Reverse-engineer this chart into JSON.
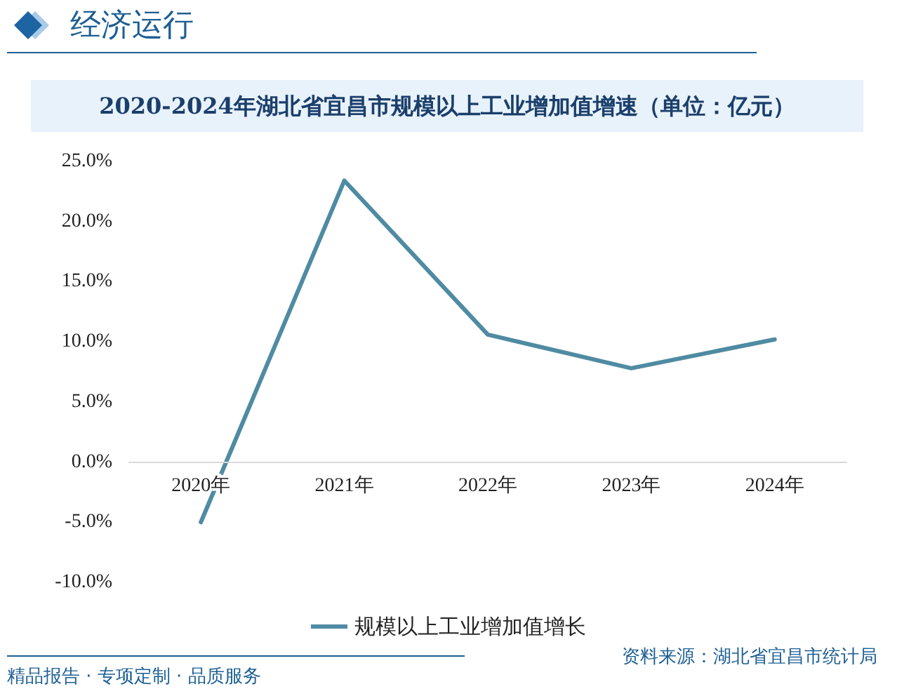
{
  "chart_data": {
    "type": "line",
    "title": "2020-2024年湖北省宜昌市规模以上工业增加值增速（单位：亿元）",
    "categories": [
      "2020年",
      "2021年",
      "2022年",
      "2023年",
      "2024年"
    ],
    "series": [
      {
        "name": "规模以上工业增加值增长",
        "color": "#4f8ba2",
        "values": [
          -5.0,
          23.4,
          10.6,
          7.8,
          10.2
        ]
      }
    ],
    "ylim": [
      -10,
      25
    ],
    "yticks": [
      {
        "value": -10,
        "label": "-10.0%"
      },
      {
        "value": -5,
        "label": "-5.0%"
      },
      {
        "value": 0,
        "label": "0.0%"
      },
      {
        "value": 5,
        "label": "5.0%"
      },
      {
        "value": 10,
        "label": "10.0%"
      },
      {
        "value": 15,
        "label": "15.0%"
      },
      {
        "value": 20,
        "label": "20.0%"
      },
      {
        "value": 25,
        "label": "25.0%"
      }
    ],
    "grid": false,
    "legend": "bottom",
    "marker": "none",
    "line_style": "solid",
    "annotations": [
      "经济运行",
      "精品报告 · 专项定制 · 品质服务",
      "资料来源：湖北省宜昌市统计局"
    ]
  }
}
